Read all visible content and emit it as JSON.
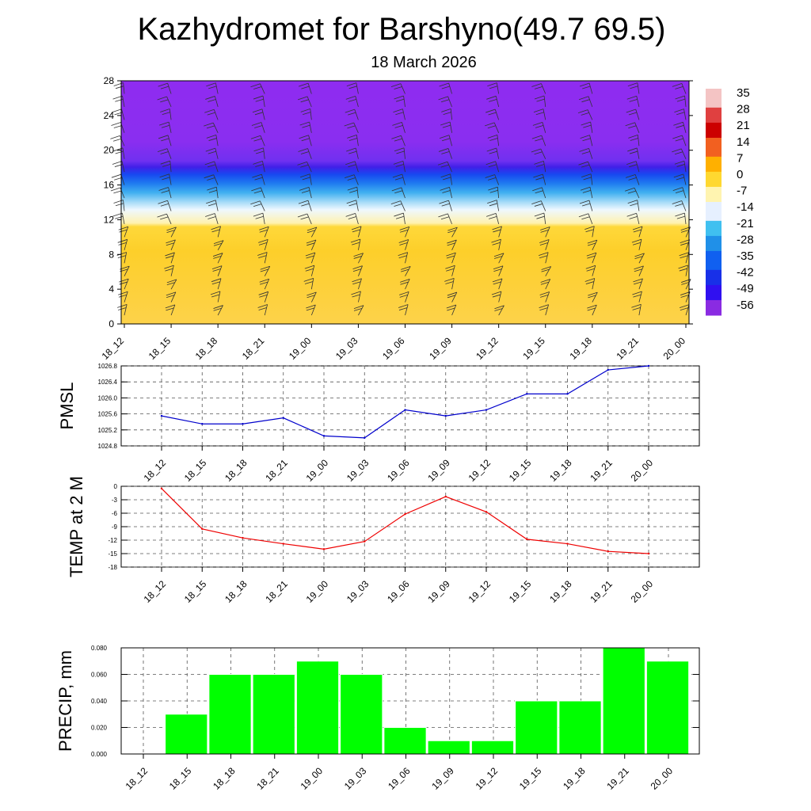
{
  "title": "Kazhydromet for Barshyno(49.7 69.5)",
  "subtitle": "18 March 2026",
  "time_labels": [
    "18_12",
    "18_15",
    "18_18",
    "18_21",
    "19_00",
    "19_03",
    "19_06",
    "19_09",
    "19_12",
    "19_15",
    "19_18",
    "19_21",
    "20_00"
  ],
  "colorbar": {
    "labels": [
      "35",
      "28",
      "21",
      "14",
      "7",
      "0",
      "-7",
      "-14",
      "-21",
      "-28",
      "-35",
      "-42",
      "-49",
      "-56"
    ],
    "colors": [
      "#f4c4c4",
      "#e04040",
      "#cc0000",
      "#f26020",
      "#ffb000",
      "#ffd830",
      "#fff4b0",
      "#e6f0ff",
      "#40c0f0",
      "#2090e8",
      "#1060f0",
      "#1830e8",
      "#3010f0",
      "#8a2be2"
    ]
  },
  "chart_data": [
    {
      "type": "heatmap",
      "title": "",
      "x_categories": [
        "18_12",
        "18_15",
        "18_18",
        "18_21",
        "19_00",
        "19_03",
        "19_06",
        "19_09",
        "19_12",
        "19_15",
        "19_18",
        "19_21",
        "20_00"
      ],
      "yticks": [
        "0",
        "4",
        "8",
        "12",
        "16",
        "20",
        "24",
        "28"
      ],
      "ylim": [
        0,
        28
      ],
      "bands": [
        {
          "from": 0,
          "to": 11,
          "value": -5,
          "color": "#fdd02a"
        },
        {
          "from": 11,
          "to": 14,
          "value": -15,
          "color": "#dff3ff"
        },
        {
          "from": 14,
          "to": 17,
          "value": -35,
          "color": "#1e6ef0"
        },
        {
          "from": 17,
          "to": 28,
          "value": -56,
          "color": "#8f2cf0"
        }
      ],
      "wind_barbs": true
    },
    {
      "type": "line",
      "ylabel": "PMSL",
      "color": "#0000cc",
      "x": [
        "18_12",
        "18_15",
        "18_18",
        "18_21",
        "19_00",
        "19_03",
        "19_06",
        "19_09",
        "19_12",
        "19_15",
        "19_18",
        "19_21",
        "20_00"
      ],
      "values": [
        1025.55,
        1025.35,
        1025.35,
        1025.5,
        1025.05,
        1025.0,
        1025.7,
        1025.55,
        1025.7,
        1026.1,
        1026.1,
        1026.7,
        1026.8
      ],
      "yticks": [
        "1024.8",
        "1025.2",
        "1025.6",
        "1026.0",
        "1026.4",
        "1026.8"
      ],
      "ylim": [
        1024.8,
        1026.8
      ],
      "grid": true
    },
    {
      "type": "line",
      "ylabel": "TEMP at 2 M",
      "color": "#ee0000",
      "x": [
        "18_12",
        "18_15",
        "18_18",
        "18_21",
        "19_00",
        "19_03",
        "19_06",
        "19_09",
        "19_12",
        "19_15",
        "19_18",
        "19_21",
        "20_00"
      ],
      "values": [
        -0.5,
        -9.5,
        -11.5,
        -12.8,
        -14.0,
        -12.3,
        -6.2,
        -2.3,
        -5.7,
        -11.8,
        -12.8,
        -14.5,
        -15.0
      ],
      "yticks": [
        "0",
        "-3",
        "-6",
        "-9",
        "-12",
        "-15",
        "-18"
      ],
      "ylim": [
        -18,
        0
      ],
      "grid": true
    },
    {
      "type": "bar",
      "ylabel": "PRECIP, mm",
      "color": "#00ff00",
      "categories": [
        "18_12",
        "18_15",
        "18_18",
        "18_21",
        "19_00",
        "19_03",
        "19_06",
        "19_09",
        "19_12",
        "19_15",
        "19_18",
        "19_21",
        "20_00"
      ],
      "values": [
        0.0,
        0.03,
        0.06,
        0.06,
        0.07,
        0.06,
        0.02,
        0.01,
        0.01,
        0.04,
        0.04,
        0.08,
        0.07
      ],
      "yticks": [
        "0.000",
        "0.020",
        "0.040",
        "0.060",
        "0.080"
      ],
      "ylim": [
        0,
        0.08
      ],
      "grid": true
    }
  ]
}
